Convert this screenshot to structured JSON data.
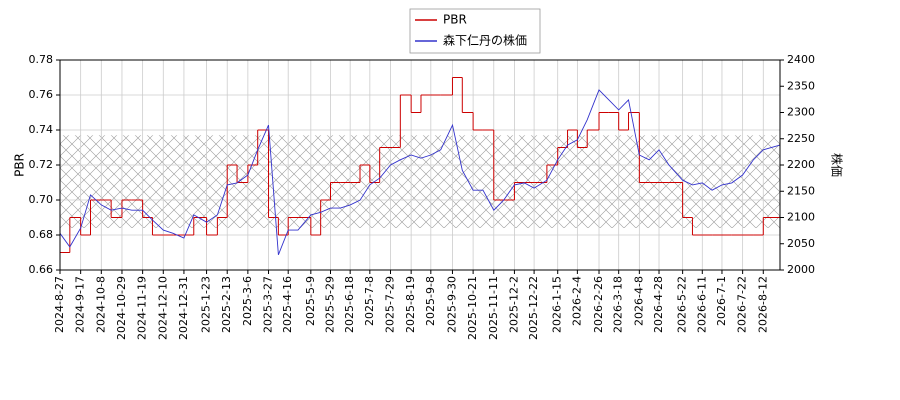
{
  "chart_data": {
    "type": "line",
    "ylabel": "PBR",
    "y2label": "株価",
    "xlim": [
      "2024-8-27",
      "2026-8-29"
    ],
    "xticks": [
      "2024-8-27",
      "2024-9-17",
      "2024-10-8",
      "2024-10-29",
      "2024-11-19",
      "2024-12-10",
      "2024-12-31",
      "2025-1-23",
      "2025-2-13",
      "2025-3-6",
      "2025-3-27",
      "2025-4-16",
      "2025-5-9",
      "2025-5-29",
      "2025-6-18",
      "2025-7-8",
      "2025-7-29",
      "2025-8-19",
      "2025-9-8",
      "2025-9-30",
      "2025-10-21",
      "2025-11-11",
      "2025-12-2",
      "2025-12-22",
      "2026-1-15",
      "2026-2-4",
      "2026-2-26",
      "2026-3-18",
      "2026-4-8",
      "2026-4-28",
      "2026-5-22",
      "2026-6-11",
      "2026-7-1",
      "2026-7-22",
      "2026-8-12"
    ],
    "ylim": [
      0.66,
      0.78
    ],
    "yticks": [
      0.66,
      0.68,
      {
        "value": 0.7,
        "label": "0.70"
      },
      0.72,
      0.74,
      0.76,
      0.78
    ],
    "y2lim": [
      2000,
      2400
    ],
    "y2ticks": [
      2000,
      2050,
      2100,
      2150,
      2200,
      2250,
      2300,
      2350,
      2400
    ],
    "grid": true,
    "shaded_range": [
      0.684,
      0.737
    ],
    "legend": "top",
    "x": [
      "2024-8-27",
      "2024-9-6",
      "2024-9-17",
      "2024-9-27",
      "2024-10-8",
      "2024-10-18",
      "2024-10-29",
      "2024-11-8",
      "2024-11-19",
      "2024-11-29",
      "2024-12-10",
      "2024-12-20",
      "2024-12-31",
      "2025-1-10",
      "2025-1-23",
      "2025-2-3",
      "2025-2-13",
      "2025-2-23",
      "2025-3-6",
      "2025-3-16",
      "2025-3-27",
      "2025-4-6",
      "2025-4-16",
      "2025-4-26",
      "2025-5-9",
      "2025-5-19",
      "2025-5-29",
      "2025-6-8",
      "2025-6-18",
      "2025-6-28",
      "2025-7-8",
      "2025-7-18",
      "2025-7-29",
      "2025-8-8",
      "2025-8-19",
      "2025-8-29",
      "2025-9-8",
      "2025-9-18",
      "2025-9-30",
      "2025-10-10",
      "2025-10-21",
      "2025-10-31",
      "2025-11-11",
      "2025-11-21",
      "2025-12-2",
      "2025-12-12",
      "2025-12-22",
      "2026-1-4",
      "2026-1-15",
      "2026-1-25",
      "2026-2-4",
      "2026-2-14",
      "2026-2-26",
      "2026-3-8",
      "2026-3-18",
      "2026-3-28",
      "2026-4-8",
      "2026-4-18",
      "2026-4-28",
      "2026-5-8",
      "2026-5-22",
      "2026-6-1",
      "2026-6-11",
      "2026-6-21",
      "2026-7-1",
      "2026-7-11",
      "2026-7-22",
      "2026-8-2",
      "2026-8-12",
      "2026-8-29"
    ],
    "series": [
      {
        "name": "PBR",
        "color": "#cc0000",
        "drawstyle": "steps",
        "values": [
          0.67,
          0.69,
          0.68,
          0.7,
          0.7,
          0.69,
          0.7,
          0.7,
          0.69,
          0.68,
          0.68,
          0.68,
          0.68,
          0.69,
          0.68,
          0.69,
          0.72,
          0.71,
          0.72,
          0.74,
          0.69,
          0.68,
          0.69,
          0.69,
          0.68,
          0.7,
          0.71,
          0.71,
          0.71,
          0.72,
          0.71,
          0.73,
          0.73,
          0.76,
          0.75,
          0.76,
          0.76,
          0.76,
          0.77,
          0.75,
          0.74,
          0.74,
          0.7,
          0.7,
          0.71,
          0.71,
          0.71,
          0.72,
          0.73,
          0.74,
          0.73,
          0.74,
          0.75,
          0.75,
          0.74,
          0.75,
          0.71,
          0.71,
          0.71,
          0.71,
          0.69,
          0.68,
          0.68,
          0.68,
          0.68,
          0.68,
          0.68,
          0.68,
          0.69,
          0.69
        ]
      },
      {
        "name": "森下仁丹の株価",
        "color": "#3333cc",
        "axis": "y2",
        "values": [
          2070,
          2044,
          2080,
          2143,
          2124,
          2114,
          2118,
          2114,
          2114,
          2095,
          2076,
          2070,
          2061,
          2105,
          2091,
          2105,
          2162,
          2166,
          2181,
          2229,
          2276,
          2029,
          2076,
          2076,
          2105,
          2110,
          2118,
          2118,
          2124,
          2133,
          2162,
          2175,
          2200,
          2210,
          2219,
          2213,
          2219,
          2229,
          2276,
          2190,
          2152,
          2152,
          2114,
          2133,
          2162,
          2166,
          2156,
          2171,
          2210,
          2238,
          2248,
          2286,
          2343,
          2324,
          2305,
          2324,
          2219,
          2210,
          2229,
          2200,
          2171,
          2162,
          2166,
          2152,
          2162,
          2166,
          2181,
          2210,
          2229,
          2238
        ]
      }
    ]
  }
}
